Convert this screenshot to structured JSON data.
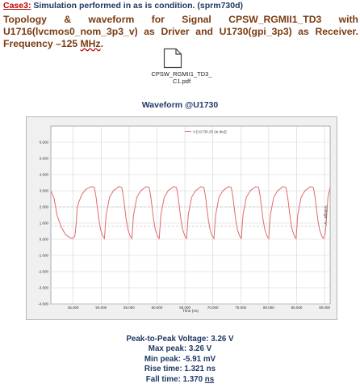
{
  "case_line": {
    "label": "Case3:",
    "text": " Simulation performed in as is condition. (sprm730d)"
  },
  "heading": {
    "text": "Topology & waveform for Signal CPSW_RGMII1_TD3 with U1716(lvcmos0_nom_3p3_v) as Driver and U1730(gpi_3p3) as Receiver. Frequency –125 ",
    "freq_unit": "MHz",
    "end": "."
  },
  "attachment": {
    "icon": "document-icon",
    "filename_line1": "CPSW_RGMII1_TD3_",
    "filename_line2": "C1.pdf"
  },
  "waveform_title": "Waveform @U1730",
  "chart_data": {
    "type": "line",
    "title": "",
    "xlabel": "Time (ns)",
    "ylabel": "Voltage - V",
    "xlim": [
      41,
      91
    ],
    "ylim": [
      -4,
      7
    ],
    "x_ticks": [
      "45.000",
      "50.000",
      "55.000",
      "60.000",
      "65.000",
      "70.000",
      "75.000",
      "80.000",
      "85.000",
      "90.000"
    ],
    "x_tick_values": [
      45,
      50,
      55,
      60,
      65,
      70,
      75,
      80,
      85,
      90
    ],
    "y_ticks": [
      "6.000",
      "5.000",
      "4.000",
      "3.000",
      "2.000",
      "1.000",
      "0.000",
      "-1.000",
      "-2.000",
      "-3.000",
      "-4.000"
    ],
    "y_tick_values": [
      6,
      5,
      4,
      3,
      2,
      1,
      0,
      -1,
      -2,
      -3,
      -4
    ],
    "threshold_lines": [
      2.0,
      0.8
    ],
    "grid": true,
    "legend": {
      "placement": "top-center",
      "entry": "V [U1730.25 (at die)]"
    },
    "series": [
      {
        "name": "V [U1730.25 (at die)]",
        "color": "#e26a6a",
        "x": [
          41.0,
          41.6,
          42.1,
          42.8,
          43.6,
          44.4,
          44.9,
          45.3,
          45.6,
          45.7,
          46.0,
          46.6,
          47.3,
          48.3,
          48.8,
          49.1,
          49.6,
          49.9,
          50.3,
          50.6,
          50.9,
          51.5,
          52.2,
          53.2,
          53.7,
          54.0,
          54.5,
          54.8,
          55.2,
          55.5,
          55.8,
          56.4,
          57.1,
          58.1,
          58.6,
          58.9,
          59.4,
          59.7,
          60.1,
          60.4,
          60.7,
          61.3,
          62.0,
          63.0,
          63.5,
          63.8,
          64.3,
          64.6,
          65.0,
          65.3,
          65.6,
          66.2,
          66.9,
          67.9,
          68.4,
          68.7,
          69.2,
          69.5,
          69.9,
          70.2,
          70.5,
          71.1,
          71.8,
          72.8,
          73.3,
          73.6,
          74.1,
          74.4,
          74.8,
          75.1,
          75.4,
          76.0,
          76.7,
          77.7,
          78.2,
          78.5,
          79.0,
          79.3,
          79.7,
          80.0,
          80.3,
          80.9,
          81.6,
          82.6,
          83.1,
          83.4,
          83.9,
          84.2,
          84.6,
          84.9,
          85.2,
          85.8,
          86.5,
          87.5,
          88.0,
          88.3,
          88.8,
          89.1,
          89.5,
          89.8,
          90.1,
          90.4,
          90.6,
          91.0
        ],
        "y": [
          3.0,
          2.5,
          1.5,
          0.8,
          0.3,
          0.1,
          0.05,
          0.2,
          1.2,
          1.9,
          2.3,
          2.8,
          3.1,
          3.26,
          3.2,
          2.6,
          1.2,
          0.6,
          0.2,
          0.05,
          1.5,
          2.6,
          3.0,
          3.26,
          3.2,
          2.6,
          1.2,
          0.6,
          0.2,
          0.05,
          1.5,
          2.6,
          3.0,
          3.26,
          3.2,
          2.6,
          1.2,
          0.6,
          0.2,
          0.05,
          1.5,
          2.6,
          3.0,
          3.26,
          3.2,
          2.6,
          1.2,
          0.6,
          0.2,
          0.05,
          1.5,
          2.6,
          3.0,
          3.26,
          3.2,
          2.6,
          1.2,
          0.6,
          0.2,
          0.05,
          1.5,
          2.6,
          3.0,
          3.26,
          3.2,
          2.6,
          1.2,
          0.6,
          0.2,
          0.05,
          1.5,
          2.6,
          3.0,
          3.26,
          3.2,
          2.6,
          1.2,
          0.6,
          0.2,
          0.05,
          1.5,
          2.6,
          3.0,
          3.26,
          3.2,
          2.6,
          1.2,
          0.6,
          0.2,
          0.05,
          1.5,
          2.6,
          3.0,
          3.26,
          3.2,
          2.6,
          1.2,
          0.6,
          0.2,
          0.05,
          0.3,
          1.5,
          2.6,
          3.2
        ]
      }
    ]
  },
  "stats": {
    "p2p": "Peak-to-Peak Voltage: 3.26 V",
    "max": "Max peak: 3.26 V",
    "min": "Min peak: -5.91 mV",
    "rise": "Rise time: 1.321 ns",
    "fall_prefix": "Fall time: 1.370 ",
    "fall_unit": "ns"
  },
  "colors": {
    "case_label": "#c00000",
    "heading": "#7a3b12",
    "navy": "#1f3864",
    "waveform": "#e26a6a"
  }
}
